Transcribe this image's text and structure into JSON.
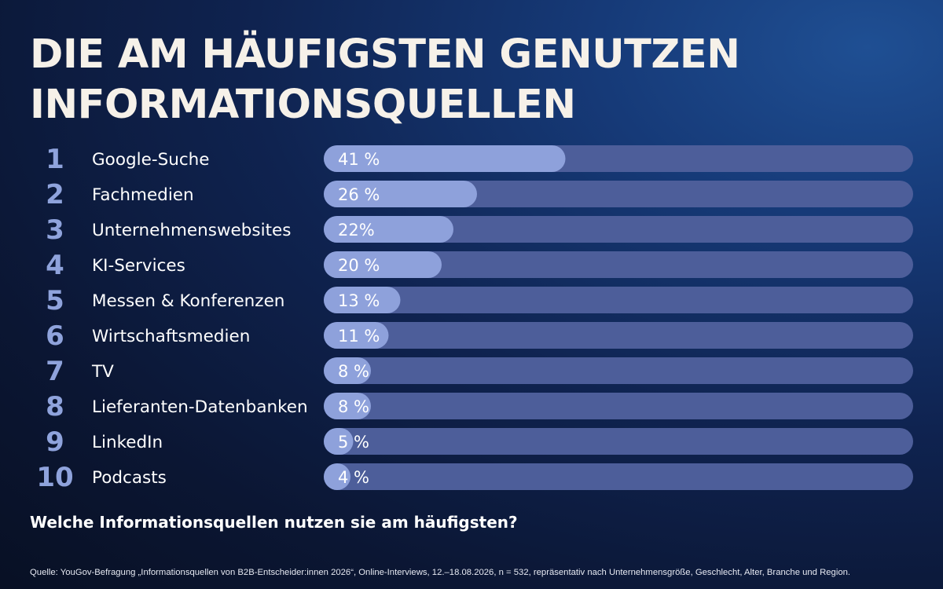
{
  "title_line1": "DIE AM HÄUFIGSTEN GENUTZEN",
  "title_line2": "INFORMATIONSQUELLEN",
  "question": "Welche Informationsquellen nutzen sie am häufigsten?",
  "source": "Quelle: YouGov-Befragung „Informationsquellen von B2B-Entscheider:innen 2026“, Online-Interviews, 12.–18.08.2026, n = 532, repräsentativ nach Unternehmensgröße, Geschlecht, Alter, Branche und Region.",
  "colors": {
    "title": "#f6f1e9",
    "rank": "#8fa3dc",
    "bar_fill": "#8ea1db",
    "bar_track": "#4d5e9a"
  },
  "chart_data": {
    "type": "bar",
    "orientation": "horizontal",
    "xlim": [
      0,
      100
    ],
    "ranks": [
      "1",
      "2",
      "3",
      "4",
      "5",
      "6",
      "7",
      "8",
      "9",
      "10"
    ],
    "categories": [
      "Google-Suche",
      "Fachmedien",
      "Unternehmenswebsites",
      "KI-Services",
      "Messen & Konferenzen",
      "Wirtschaftsmedien",
      "TV",
      "Lieferanten-Datenbanken",
      "LinkedIn",
      "Podcasts"
    ],
    "values": [
      41,
      26,
      22,
      20,
      13,
      11,
      8,
      8,
      5,
      4
    ],
    "value_labels": [
      "41 %",
      "26 %",
      "22%",
      "20 %",
      "13 %",
      "11 %",
      "8 %",
      "8 %",
      "5 %",
      "4 %"
    ]
  }
}
